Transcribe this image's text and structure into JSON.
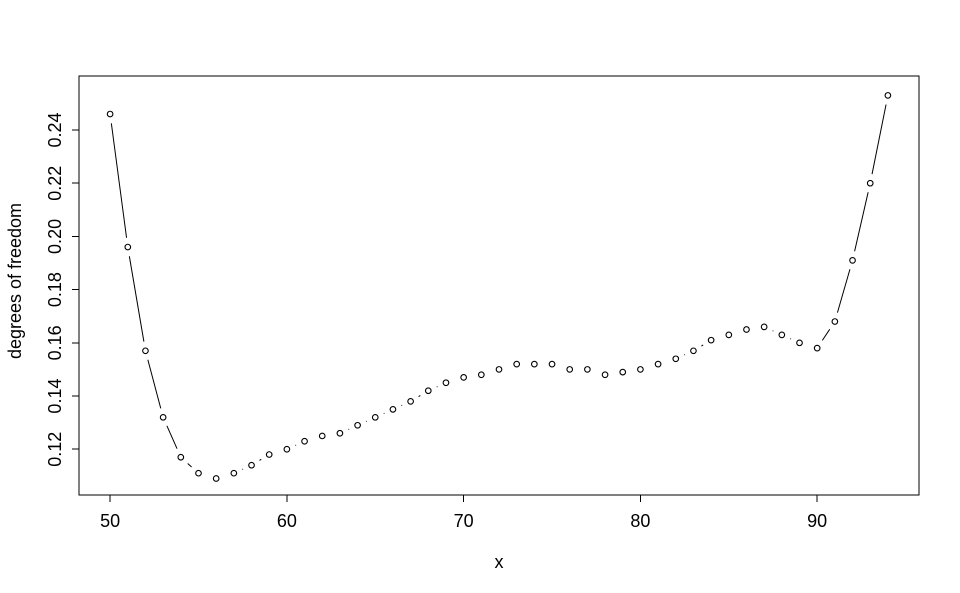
{
  "chart_data": {
    "type": "line",
    "title": "",
    "xlabel": "x",
    "ylabel": "degrees of freedom",
    "marker": "open-circle",
    "line_style": "solid-with-gaps-around-points",
    "grid": false,
    "legend": null,
    "x": [
      50,
      51,
      52,
      53,
      54,
      55,
      56,
      57,
      58,
      59,
      60,
      61,
      62,
      63,
      64,
      65,
      66,
      67,
      68,
      69,
      70,
      71,
      72,
      73,
      74,
      75,
      76,
      77,
      78,
      79,
      80,
      81,
      82,
      83,
      84,
      85,
      86,
      87,
      88,
      89,
      90,
      91,
      92,
      93,
      94
    ],
    "y": [
      0.246,
      0.196,
      0.157,
      0.132,
      0.117,
      0.111,
      0.109,
      0.111,
      0.114,
      0.118,
      0.12,
      0.123,
      0.125,
      0.126,
      0.129,
      0.132,
      0.135,
      0.138,
      0.142,
      0.145,
      0.147,
      0.148,
      0.15,
      0.152,
      0.152,
      0.152,
      0.15,
      0.15,
      0.148,
      0.149,
      0.15,
      0.152,
      0.154,
      0.157,
      0.161,
      0.163,
      0.165,
      0.166,
      0.163,
      0.16,
      0.158,
      0.168,
      0.191,
      0.22,
      0.253
    ],
    "xlim": [
      48.24,
      95.76
    ],
    "ylim": [
      0.1028,
      0.2603
    ],
    "x_ticks": [
      50,
      60,
      70,
      80,
      90
    ],
    "x_tick_labels": [
      "50",
      "60",
      "70",
      "80",
      "90"
    ],
    "y_ticks": [
      0.12,
      0.14,
      0.16,
      0.18,
      0.2,
      0.22,
      0.24
    ],
    "y_tick_labels": [
      "0.12",
      "0.14",
      "0.16",
      "0.18",
      "0.20",
      "0.22",
      "0.24"
    ],
    "colors": {
      "foreground": "#000000",
      "background": "#ffffff"
    }
  }
}
